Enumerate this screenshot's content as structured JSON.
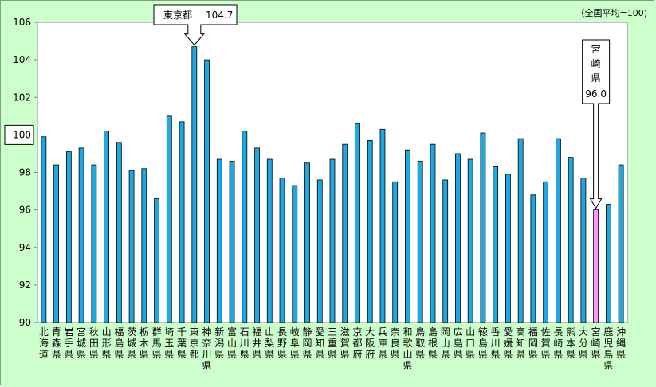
{
  "note": "（全国平均=100)",
  "callouts": {
    "top": {
      "prefecture": "東京都",
      "value": "104.7"
    },
    "highlight": {
      "prefecture": "宮崎県",
      "value": "96.0"
    }
  },
  "colors": {
    "bar": "#1ea7e0",
    "bar_highlight": "#ff99ff",
    "background": "#ccffcc",
    "plot_background": "#ffffff"
  },
  "chart_data": {
    "type": "bar",
    "categories": [
      "北海道",
      "青森県",
      "岩手県",
      "宮城県",
      "秋田県",
      "山形県",
      "福島県",
      "茨城県",
      "栃木県",
      "群馬県",
      "埼玉県",
      "千葉県",
      "東京都",
      "神奈川県",
      "新潟県",
      "富山県",
      "石川県",
      "福井県",
      "山梨県",
      "長野県",
      "岐阜県",
      "静岡県",
      "愛知県",
      "三重県",
      "滋賀県",
      "京都府",
      "大阪府",
      "兵庫県",
      "奈良県",
      "和歌山県",
      "鳥取県",
      "島根県",
      "岡山県",
      "広島県",
      "山口県",
      "徳島県",
      "香川県",
      "愛媛県",
      "高知県",
      "福岡県",
      "佐賀県",
      "長崎県",
      "熊本県",
      "大分県",
      "宮崎県",
      "鹿児島県",
      "沖縄県"
    ],
    "values": [
      99.9,
      98.4,
      99.1,
      99.3,
      98.4,
      100.2,
      99.6,
      98.1,
      98.2,
      96.6,
      101.0,
      100.7,
      104.7,
      104.0,
      98.7,
      98.6,
      100.2,
      99.3,
      98.7,
      97.7,
      97.3,
      98.5,
      97.6,
      98.7,
      99.5,
      100.6,
      99.7,
      100.3,
      97.5,
      99.2,
      98.6,
      99.5,
      97.6,
      99.0,
      98.7,
      100.1,
      98.3,
      97.9,
      99.8,
      96.8,
      97.5,
      99.8,
      98.8,
      97.7,
      96.0,
      96.3,
      98.4
    ],
    "highlight_category": "宮崎県",
    "ylim": [
      90,
      106
    ],
    "yticks": [
      "90",
      "92",
      "94",
      "96",
      "98",
      "100",
      "102",
      "104",
      "106"
    ],
    "reference_tick": "100",
    "grid": false,
    "legend": "none"
  }
}
